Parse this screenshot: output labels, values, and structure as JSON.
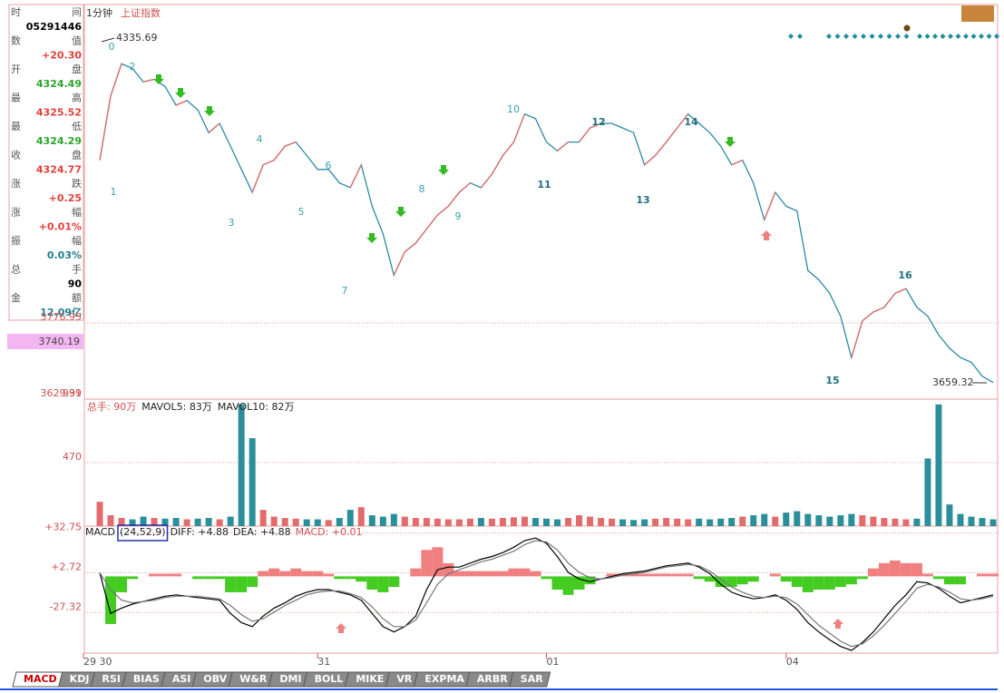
{
  "header": {
    "period": "1分钟",
    "symbol": "上证指数"
  },
  "info_panel": {
    "rows": [
      {
        "label": "时间",
        "value": "05291446",
        "color": "#000000"
      },
      {
        "label": "数值",
        "value": "+20.30",
        "color": "#e0403a"
      },
      {
        "label": "开盘",
        "value": "4324.49",
        "color": "#2aa52a"
      },
      {
        "label": "最高",
        "value": "4325.52",
        "color": "#e0403a"
      },
      {
        "label": "最低",
        "value": "4324.29",
        "color": "#2aa52a"
      },
      {
        "label": "收盘",
        "value": "4324.77",
        "color": "#e0403a"
      },
      {
        "label": "涨跌",
        "value": "+0.25",
        "color": "#e0403a"
      },
      {
        "label": "涨幅",
        "value": "+0.01%",
        "color": "#e0403a"
      },
      {
        "label": "振幅",
        "value": "0.03%",
        "color": "#1f7f8f"
      },
      {
        "label": "总手",
        "value": "90",
        "color": "#000000"
      },
      {
        "label": "金额",
        "value": "12.09亿",
        "color": "#1f7f8f"
      }
    ]
  },
  "wave_labels": [
    "0",
    "1",
    "2",
    "3",
    "4",
    "5",
    "6",
    "7",
    "8",
    "9",
    "10",
    "11",
    "12",
    "13",
    "14",
    "15",
    "16"
  ],
  "tabs": [
    "MACD",
    "KDJ",
    "RSI",
    "BIAS",
    "ASI",
    "OBV",
    "W&R",
    "DMI",
    "BOLL",
    "MIKE",
    "VR",
    "EXPMA",
    "ARBR",
    "SAR"
  ],
  "chart_data": [
    {
      "type": "line",
      "color": "#2b8aa6",
      "rise_color": "#e36b6b",
      "high": 4335.69,
      "low": 3659.32,
      "cursor_value": 3740.19,
      "ylim": [
        3629.91,
        4361.5
      ],
      "yticks": [
        3629.91,
        3776.95
      ],
      "grid": true,
      "categories": [
        "29 30",
        null,
        null,
        null,
        null,
        null,
        null,
        null,
        null,
        null,
        null,
        null,
        null,
        null,
        null,
        null,
        null,
        null,
        null,
        null,
        "31",
        null,
        null,
        null,
        null,
        null,
        null,
        null,
        null,
        null,
        null,
        null,
        null,
        null,
        null,
        null,
        null,
        null,
        null,
        null,
        null,
        "01",
        null,
        null,
        null,
        null,
        null,
        null,
        null,
        null,
        null,
        null,
        null,
        null,
        null,
        null,
        null,
        null,
        null,
        null,
        null,
        null,
        null,
        "04",
        null,
        null,
        null,
        null,
        null,
        null,
        null,
        null,
        null,
        null,
        null,
        null,
        null,
        null,
        null,
        null,
        null,
        null,
        null
      ],
      "values": [
        4091,
        4215,
        4277,
        4268,
        4242,
        4247,
        4233,
        4197,
        4206,
        4188,
        4144,
        4162,
        4118,
        4073,
        4029,
        4082,
        4091,
        4118,
        4126,
        4100,
        4073,
        4073,
        4047,
        4038,
        4082,
        4002,
        3949,
        3869,
        3914,
        3931,
        3958,
        3985,
        4002,
        4029,
        4047,
        4038,
        4064,
        4100,
        4126,
        4180,
        4171,
        4126,
        4109,
        4126,
        4126,
        4153,
        4162,
        4162,
        4153,
        4144,
        4082,
        4100,
        4126,
        4153,
        4180,
        4162,
        4144,
        4118,
        4082,
        4091,
        4047,
        3976,
        4029,
        4002,
        3993,
        3878,
        3860,
        3834,
        3790,
        3710,
        3781,
        3798,
        3807,
        3834,
        3843,
        3807,
        3790,
        3754,
        3728,
        3710,
        3701,
        3674,
        3662
      ]
    },
    {
      "type": "bar",
      "legend": [
        "总手: 90万",
        "MAVOL5: 83万",
        "MAVOL10: 82万"
      ],
      "rise_color": "#e36b6b",
      "fall_color": "#2a8f9a",
      "ylim": [
        0,
        939
      ],
      "yticks": [
        470,
        939
      ],
      "grid": true,
      "values": [
        180,
        80,
        60,
        50,
        70,
        60,
        55,
        60,
        50,
        55,
        60,
        50,
        70,
        900,
        650,
        120,
        70,
        60,
        55,
        50,
        50,
        45,
        60,
        120,
        140,
        80,
        70,
        90,
        70,
        60,
        60,
        55,
        50,
        50,
        55,
        60,
        55,
        60,
        65,
        70,
        60,
        55,
        50,
        60,
        80,
        70,
        60,
        55,
        50,
        45,
        50,
        55,
        60,
        55,
        50,
        55,
        50,
        55,
        60,
        70,
        80,
        90,
        70,
        100,
        110,
        90,
        80,
        70,
        80,
        90,
        80,
        70,
        60,
        55,
        50,
        55,
        500,
        900,
        160,
        90,
        70,
        60,
        50
      ]
    },
    {
      "type": "macd",
      "legend": [
        "MACD",
        "(24,52,9)",
        "DIFF: +4.88",
        "DEA: +4.88",
        "MACD: +0.01"
      ],
      "diff_color": "#000000",
      "dea_color": "#777777",
      "up_color": "#f08080",
      "down_color": "#44cc22",
      "ylim": [
        -58,
        38
      ],
      "yticks": [
        {
          "value": 32.75,
          "label": "+32.75"
        },
        {
          "value": 2.72,
          "label": "+2.72"
        },
        -27.32
      ],
      "grid": true,
      "diff": [
        2.7,
        -28,
        -24,
        -21,
        -19,
        -17,
        -15,
        -14,
        -15,
        -16,
        -17,
        -18,
        -28,
        -35,
        -38,
        -30,
        -24,
        -20,
        -15,
        -12,
        -10,
        -10,
        -12,
        -14,
        -18,
        -28,
        -38,
        -42,
        -38,
        -30,
        -10,
        5,
        7,
        7,
        10,
        13,
        15,
        18,
        22,
        27,
        29,
        25,
        15,
        3,
        -2,
        -4,
        -2,
        0,
        2,
        3,
        4,
        6,
        8,
        9,
        10,
        7,
        2,
        -6,
        -12,
        -15,
        -17,
        -16,
        -14,
        -18,
        -25,
        -35,
        -42,
        -48,
        -53,
        -56,
        -50,
        -42,
        -32,
        -22,
        -14,
        -4,
        -5,
        -9,
        -15,
        -20,
        -18,
        -16,
        -14
      ],
      "dea": [
        2.7,
        -10,
        -18,
        -20,
        -19,
        -18,
        -16,
        -15,
        -15,
        -15,
        -16,
        -17,
        -22,
        -29,
        -34,
        -32,
        -27,
        -22,
        -18,
        -14,
        -12,
        -11,
        -11,
        -13,
        -16,
        -23,
        -32,
        -38,
        -38,
        -33,
        -20,
        -6,
        2,
        5,
        8,
        11,
        13,
        16,
        19,
        24,
        27,
        26,
        20,
        10,
        3,
        -1,
        -2,
        -1,
        1,
        2,
        3,
        5,
        7,
        8,
        9,
        8,
        4,
        -2,
        -8,
        -12,
        -15,
        -16,
        -15,
        -16,
        -21,
        -29,
        -37,
        -43,
        -49,
        -53,
        -51,
        -45,
        -37,
        -28,
        -19,
        -9,
        -6,
        -8,
        -12,
        -17,
        -18,
        -17,
        -15
      ],
      "macd": [
        0,
        -36,
        -12,
        -2,
        0,
        2,
        2,
        2,
        0,
        -2,
        -2,
        -2,
        -12,
        -12,
        -8,
        4,
        6,
        4,
        6,
        4,
        4,
        2,
        -2,
        -2,
        -4,
        -10,
        -12,
        -8,
        0,
        6,
        20,
        22,
        10,
        4,
        4,
        4,
        4,
        4,
        6,
        6,
        4,
        -2,
        -10,
        -14,
        -10,
        -6,
        0,
        2,
        2,
        2,
        2,
        2,
        2,
        2,
        2,
        -2,
        -4,
        -8,
        -8,
        -6,
        -4,
        0,
        2,
        -4,
        -8,
        -12,
        -10,
        -10,
        -8,
        -6,
        -2,
        6,
        10,
        12,
        10,
        10,
        2,
        -2,
        -6,
        -6,
        0,
        2,
        2
      ]
    }
  ]
}
